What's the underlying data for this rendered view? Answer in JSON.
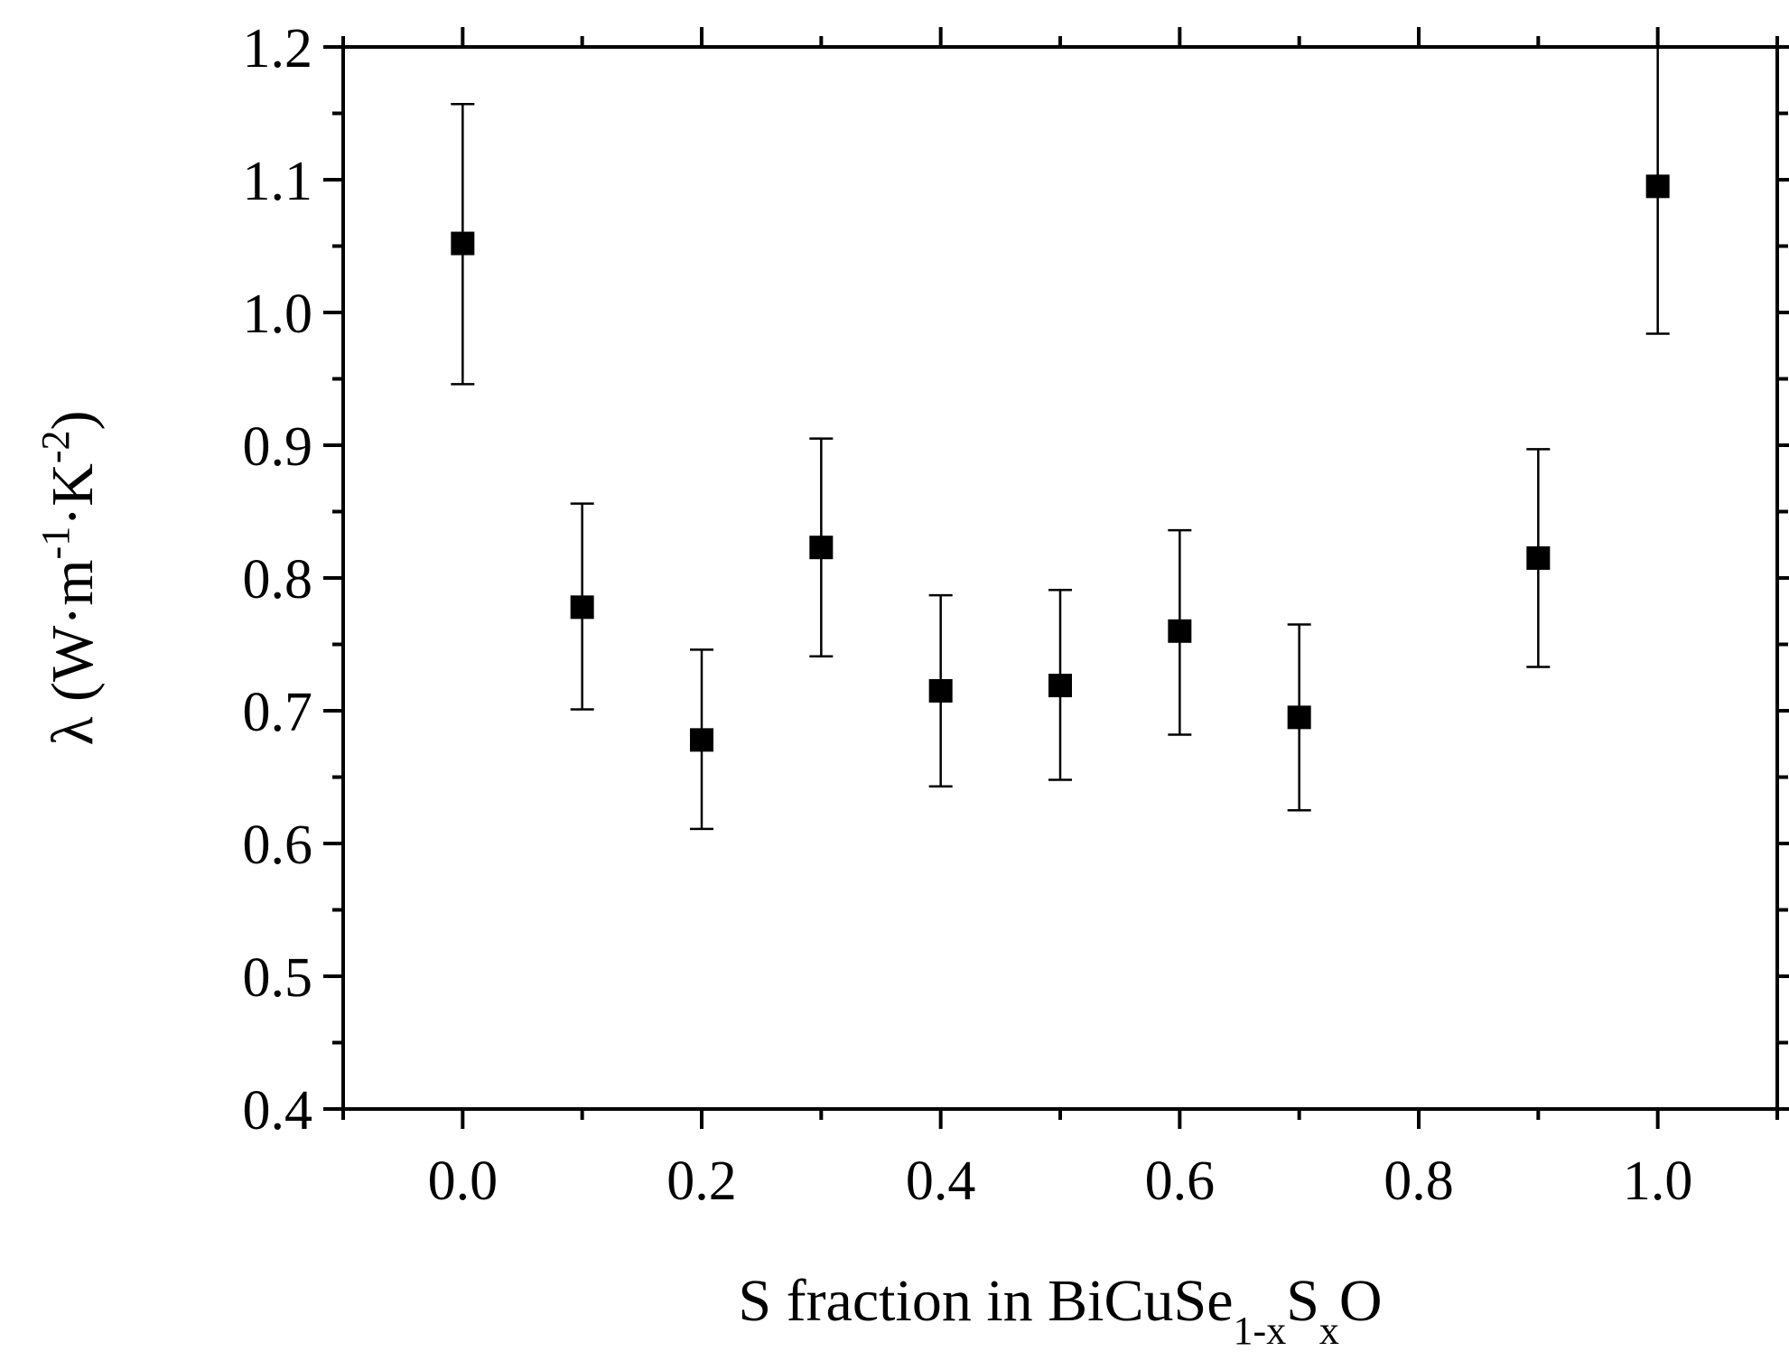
{
  "chart_data": {
    "type": "scatter",
    "xlabel": {
      "prefix": "S fraction in BiCuSe",
      "sub1": "1-x",
      "mid": "S",
      "sub2": "x",
      "suffix": "O"
    },
    "ylabel": {
      "prefix": "λ (W·m",
      "sup1": "-1",
      "mid": "·K",
      "sup2": "-2",
      "suffix": ")"
    },
    "xlim": [
      -0.1,
      1.1
    ],
    "ylim": [
      0.4,
      1.2
    ],
    "xticks": [
      "0.0",
      "0.2",
      "0.4",
      "0.6",
      "0.8",
      "1.0"
    ],
    "yticks": [
      "0.4",
      "0.5",
      "0.6",
      "0.7",
      "0.8",
      "0.9",
      "1.0",
      "1.1",
      "1.2"
    ],
    "grid": false,
    "legend": "none",
    "marker": "square",
    "color": "#000000",
    "series": [
      {
        "x": [
          0.0,
          0.1,
          0.2,
          0.3,
          0.4,
          0.5,
          0.6,
          0.7,
          0.9,
          1.0
        ],
        "y": [
          1.052,
          0.778,
          0.678,
          0.823,
          0.715,
          0.719,
          0.76,
          0.695,
          0.815,
          1.095
        ],
        "err_low": [
          0.946,
          0.701,
          0.611,
          0.741,
          0.643,
          0.648,
          0.682,
          0.625,
          0.733,
          0.984
        ],
        "err_high": [
          1.157,
          0.856,
          0.746,
          0.905,
          0.787,
          0.791,
          0.836,
          0.765,
          0.897,
          1.215
        ]
      }
    ]
  }
}
